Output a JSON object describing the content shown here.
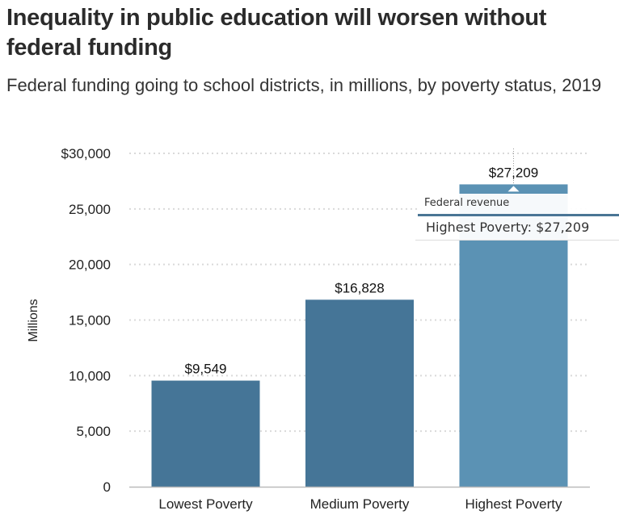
{
  "header": {
    "title": "Inequality in public education will worsen without federal funding",
    "subtitle": "Federal funding going to school districts, in millions, by poverty status, 2019"
  },
  "colors": {
    "bar_default": "#457597",
    "bar_hover": "#5b92b4",
    "grid": "#d9d9d9",
    "axis": "#bbbbbb",
    "tooltip_rule": "#4a7595"
  },
  "tooltip": {
    "series_name": "Federal revenue",
    "text": "Highest Poverty: $27,209"
  },
  "chart_data": {
    "type": "bar",
    "title": "Inequality in public education will worsen without federal funding",
    "subtitle": "Federal funding going to school districts, in millions, by poverty status, 2019",
    "xlabel": "",
    "ylabel": "Millions",
    "ylim": [
      0,
      30000
    ],
    "grid": true,
    "legend": "none",
    "categories": [
      "Lowest Poverty",
      "Medium Poverty",
      "Highest Poverty"
    ],
    "series": [
      {
        "name": "Federal revenue",
        "values": [
          9549,
          16828,
          27209
        ]
      }
    ],
    "data_labels": [
      "$9,549",
      "$16,828",
      "$27,209"
    ],
    "y_ticks": [
      0,
      5000,
      10000,
      15000,
      20000,
      25000,
      30000
    ],
    "y_tick_labels": [
      "0",
      "5,000",
      "10,000",
      "15,000",
      "20,000",
      "25,000",
      "$30,000"
    ],
    "highlighted_category": "Highest Poverty"
  }
}
